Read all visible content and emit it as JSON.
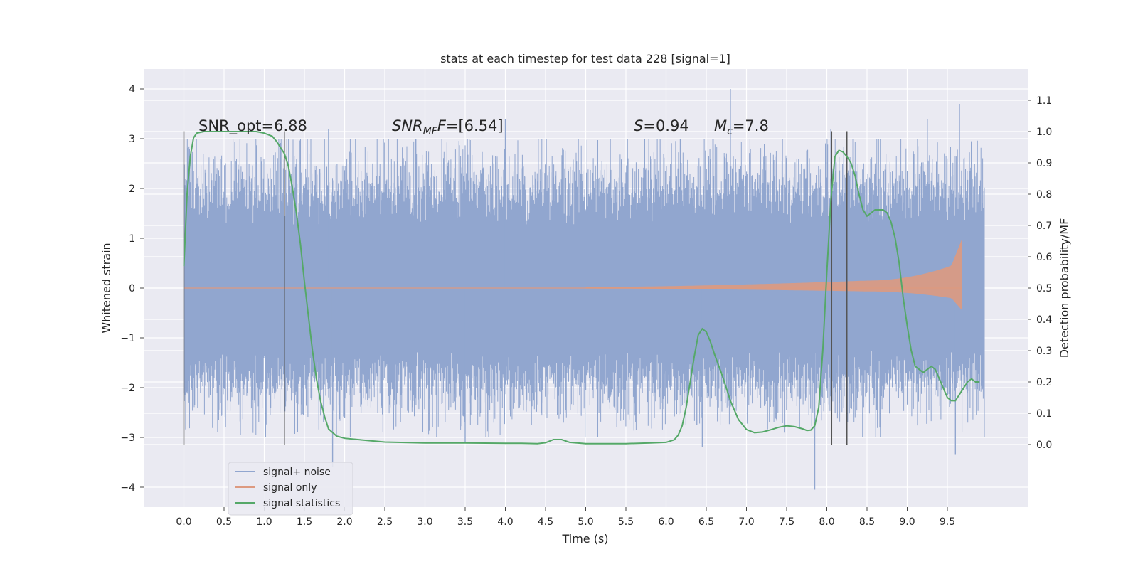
{
  "chart_data": {
    "type": "line",
    "title": "stats at each timestep for test data 228 [signal=1]",
    "xlabel": "Time (s)",
    "ylabel": "Whitened strain",
    "ylabel_right": "Detection probability/MF",
    "xlim": [
      -0.5,
      10.5
    ],
    "ylim": [
      -4.4,
      4.4
    ],
    "ylim_right": [
      -0.2,
      1.2
    ],
    "x_ticks": [
      "0.0",
      "0.5",
      "1.0",
      "1.5",
      "2.0",
      "2.5",
      "3.0",
      "3.5",
      "4.0",
      "4.5",
      "5.0",
      "5.5",
      "6.0",
      "6.5",
      "7.0",
      "7.5",
      "8.0",
      "8.5",
      "9.0",
      "9.5"
    ],
    "y_ticks": [
      4,
      3,
      2,
      1,
      0,
      -1,
      -2,
      -3,
      -4
    ],
    "y_tick_labels": [
      "4",
      "3",
      "2",
      "1",
      "0",
      "−1",
      "−2",
      "−3",
      "−4"
    ],
    "y_right_ticks": [
      1.1,
      1.0,
      0.9,
      0.8,
      0.7,
      0.6,
      0.5,
      0.4,
      0.3,
      0.2,
      0.1,
      0.0
    ],
    "y_right_tick_labels": [
      "1.1",
      "1.0",
      "0.9",
      "0.8",
      "0.7",
      "0.6",
      "0.5",
      "0.4",
      "0.3",
      "0.2",
      "0.1",
      "0.0"
    ],
    "grid": true,
    "legend_position": "bottom-left",
    "annotations": {
      "snr_opt": "SNR_opt=6.88",
      "snr_mf_main": "SNR",
      "snr_mf_sub": "MF",
      "snr_mf_rest": "=[6.54]",
      "s_main": "S",
      "s_rest": "=0.94",
      "mc_main": "M",
      "mc_sub": "c",
      "mc_rest": "=7.8"
    },
    "vertical_lines_x": [
      0.0,
      1.25,
      8.06,
      8.25
    ],
    "vertical_lines_range": [
      -3.15,
      3.15
    ],
    "series": [
      {
        "name": "signal+ noise",
        "color": "#91a6cf",
        "x_range": [
          0.0,
          9.96
        ],
        "band_abs": 1.25,
        "peaks": [
          [
            0.0,
            2.5
          ],
          [
            0.0,
            -2.1
          ],
          [
            1.8,
            3.2
          ],
          [
            1.85,
            -3.6
          ],
          [
            4.0,
            3.4
          ],
          [
            3.5,
            -3.1
          ],
          [
            6.8,
            4.0
          ],
          [
            6.45,
            -3.2
          ],
          [
            7.85,
            -4.05
          ],
          [
            8.05,
            3.2
          ],
          [
            9.25,
            3.4
          ],
          [
            9.65,
            3.7
          ],
          [
            9.6,
            -3.35
          ],
          [
            1.25,
            -2.4
          ],
          [
            2.0,
            -2.6
          ]
        ]
      },
      {
        "name": "signal only",
        "color": "#dd9a80",
        "chirp": {
          "start_x": 5.0,
          "end_x": 9.68,
          "start_amp": 0.02,
          "mid_x": 8.5,
          "mid_amp": 0.15,
          "near_end_x": 9.55,
          "near_end_amp": 0.45,
          "peak_amp": 0.98
        }
      },
      {
        "name": "signal statistics",
        "color": "#55a868",
        "axis": "right",
        "x": [
          0.0,
          0.04,
          0.08,
          0.12,
          0.16,
          0.25,
          0.4,
          0.6,
          0.8,
          0.9,
          1.0,
          1.1,
          1.15,
          1.2,
          1.25,
          1.3,
          1.35,
          1.4,
          1.45,
          1.5,
          1.55,
          1.6,
          1.65,
          1.7,
          1.75,
          1.8,
          1.9,
          2.0,
          2.2,
          2.5,
          3.0,
          3.5,
          4.0,
          4.2,
          4.4,
          4.5,
          4.6,
          4.7,
          4.8,
          5.0,
          5.5,
          5.8,
          6.0,
          6.1,
          6.15,
          6.2,
          6.25,
          6.3,
          6.35,
          6.4,
          6.45,
          6.5,
          6.55,
          6.6,
          6.7,
          6.8,
          6.9,
          7.0,
          7.1,
          7.2,
          7.3,
          7.4,
          7.5,
          7.6,
          7.7,
          7.75,
          7.8,
          7.85,
          7.9,
          7.95,
          8.0,
          8.05,
          8.1,
          8.15,
          8.2,
          8.25,
          8.3,
          8.35,
          8.4,
          8.45,
          8.5,
          8.6,
          8.7,
          8.75,
          8.8,
          8.85,
          8.9,
          8.95,
          9.0,
          9.05,
          9.1,
          9.15,
          9.2,
          9.3,
          9.35,
          9.4,
          9.45,
          9.5,
          9.55,
          9.6,
          9.65,
          9.7,
          9.75,
          9.8,
          9.85,
          9.9
        ],
        "values": [
          0.57,
          0.8,
          0.92,
          0.98,
          0.995,
          1.0,
          1.0,
          1.0,
          1.0,
          1.0,
          0.995,
          0.985,
          0.97,
          0.95,
          0.93,
          0.89,
          0.82,
          0.74,
          0.64,
          0.52,
          0.41,
          0.3,
          0.21,
          0.14,
          0.09,
          0.05,
          0.027,
          0.02,
          0.015,
          0.008,
          0.005,
          0.005,
          0.004,
          0.004,
          0.003,
          0.006,
          0.016,
          0.016,
          0.007,
          0.003,
          0.003,
          0.005,
          0.007,
          0.015,
          0.03,
          0.06,
          0.12,
          0.2,
          0.28,
          0.35,
          0.37,
          0.36,
          0.33,
          0.29,
          0.22,
          0.14,
          0.08,
          0.048,
          0.038,
          0.04,
          0.047,
          0.055,
          0.06,
          0.057,
          0.05,
          0.045,
          0.046,
          0.06,
          0.12,
          0.3,
          0.55,
          0.78,
          0.92,
          0.94,
          0.935,
          0.92,
          0.9,
          0.86,
          0.8,
          0.75,
          0.73,
          0.75,
          0.75,
          0.74,
          0.71,
          0.66,
          0.58,
          0.47,
          0.38,
          0.3,
          0.25,
          0.24,
          0.23,
          0.25,
          0.24,
          0.21,
          0.18,
          0.15,
          0.14,
          0.14,
          0.16,
          0.18,
          0.2,
          0.21,
          0.2,
          0.2
        ]
      }
    ]
  }
}
